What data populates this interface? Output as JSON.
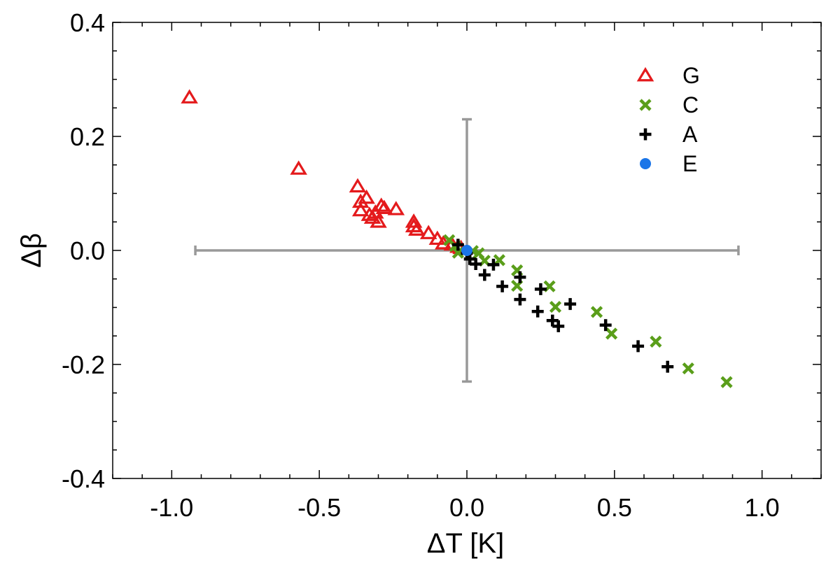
{
  "chart_data": {
    "type": "scatter",
    "title": "",
    "xlabel": "ΔT [K]",
    "ylabel": "Δβ",
    "xlim": [
      -1.2,
      1.2
    ],
    "ylim": [
      -0.4,
      0.4
    ],
    "x_ticks": [
      -1.0,
      -0.5,
      0.0,
      0.5,
      1.0
    ],
    "x_tick_labels": [
      "-1.0",
      "-0.5",
      "0.0",
      "0.5",
      "1.0"
    ],
    "y_ticks": [
      -0.4,
      -0.2,
      0.0,
      0.2,
      0.4
    ],
    "y_tick_labels": [
      "-0.4",
      "-0.2",
      "0.0",
      "0.2",
      "0.4"
    ],
    "grid": false,
    "legend_position": "top-right",
    "error_bars": {
      "color": "#999999",
      "center": [
        0.0,
        0.0
      ],
      "x_range": [
        -0.92,
        0.92
      ],
      "y_range": [
        -0.23,
        0.23
      ]
    },
    "series": [
      {
        "name": "G",
        "marker": "triangle-open",
        "color": "#e41a1c",
        "points": [
          [
            -0.94,
            0.268
          ],
          [
            -0.57,
            0.143
          ],
          [
            -0.37,
            0.112
          ],
          [
            -0.36,
            0.085
          ],
          [
            -0.36,
            0.07
          ],
          [
            -0.34,
            0.092
          ],
          [
            -0.33,
            0.062
          ],
          [
            -0.32,
            0.057
          ],
          [
            -0.31,
            0.066
          ],
          [
            -0.3,
            0.05
          ],
          [
            -0.29,
            0.078
          ],
          [
            -0.28,
            0.074
          ],
          [
            -0.24,
            0.072
          ],
          [
            -0.18,
            0.05
          ],
          [
            -0.18,
            0.042
          ],
          [
            -0.17,
            0.036
          ],
          [
            -0.13,
            0.03
          ],
          [
            -0.1,
            0.02
          ],
          [
            -0.08,
            0.012
          ],
          [
            -0.05,
            0.01
          ],
          [
            -0.03,
            0.006
          ],
          [
            -0.02,
            0.004
          ]
        ]
      },
      {
        "name": "C",
        "marker": "x",
        "color": "#5a9e1a",
        "points": [
          [
            -0.06,
            0.018
          ],
          [
            -0.04,
            0.008
          ],
          [
            -0.03,
            -0.004
          ],
          [
            0.02,
            -0.001
          ],
          [
            0.04,
            -0.005
          ],
          [
            0.06,
            -0.018
          ],
          [
            0.11,
            -0.017
          ],
          [
            0.17,
            -0.035
          ],
          [
            0.17,
            -0.062
          ],
          [
            0.28,
            -0.063
          ],
          [
            0.3,
            -0.099
          ],
          [
            0.44,
            -0.108
          ],
          [
            0.49,
            -0.146
          ],
          [
            0.64,
            -0.16
          ],
          [
            0.75,
            -0.207
          ],
          [
            0.88,
            -0.231
          ]
        ]
      },
      {
        "name": "A",
        "marker": "plus",
        "color": "#000000",
        "points": [
          [
            -0.03,
            0.01
          ],
          [
            0.0,
            -0.005
          ],
          [
            0.01,
            -0.015
          ],
          [
            0.03,
            -0.024
          ],
          [
            0.06,
            -0.043
          ],
          [
            0.09,
            -0.025
          ],
          [
            0.12,
            -0.063
          ],
          [
            0.18,
            -0.047
          ],
          [
            0.18,
            -0.086
          ],
          [
            0.24,
            -0.107
          ],
          [
            0.25,
            -0.068
          ],
          [
            0.29,
            -0.123
          ],
          [
            0.31,
            -0.133
          ],
          [
            0.35,
            -0.094
          ],
          [
            0.47,
            -0.131
          ],
          [
            0.58,
            -0.168
          ],
          [
            0.68,
            -0.204
          ]
        ]
      },
      {
        "name": "E",
        "marker": "circle-filled",
        "color": "#1a75e8",
        "points": [
          [
            0.0,
            0.0
          ]
        ]
      }
    ]
  }
}
